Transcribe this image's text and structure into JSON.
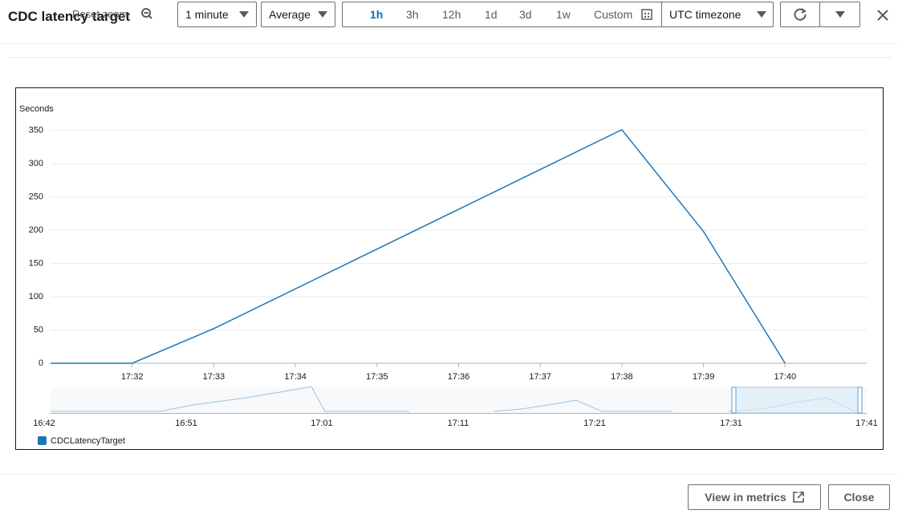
{
  "header": {
    "title": "CDC latency target",
    "reset_zoom": "Reset zoom",
    "period": "1 minute",
    "statistic": "Average",
    "ranges": [
      "1h",
      "3h",
      "12h",
      "1d",
      "3d",
      "1w"
    ],
    "custom": "Custom",
    "timezone": "UTC timezone"
  },
  "chart_data": {
    "type": "line",
    "ylabel": "Seconds",
    "x": [
      "17:31",
      "17:32",
      "17:33",
      "17:38",
      "17:39",
      "17:40"
    ],
    "series": [
      {
        "name": "CDCLatencyTarget",
        "color": "#1f77b4",
        "values": [
          0,
          0,
          52,
          351,
          198,
          0
        ]
      }
    ],
    "xlim": [
      "17:31",
      "17:41"
    ],
    "xticks": [
      "17:32",
      "17:33",
      "17:34",
      "17:35",
      "17:36",
      "17:37",
      "17:38",
      "17:39",
      "17:40"
    ],
    "ylim": [
      0,
      370
    ],
    "yticks": [
      0,
      50,
      100,
      150,
      200,
      250,
      300,
      350
    ],
    "grid": true
  },
  "navigator": {
    "ticks": [
      "16:42",
      "16:51",
      "17:01",
      "17:11",
      "17:21",
      "17:31",
      "17:41"
    ]
  },
  "footer": {
    "view_in_metrics": "View in metrics",
    "close": "Close"
  }
}
